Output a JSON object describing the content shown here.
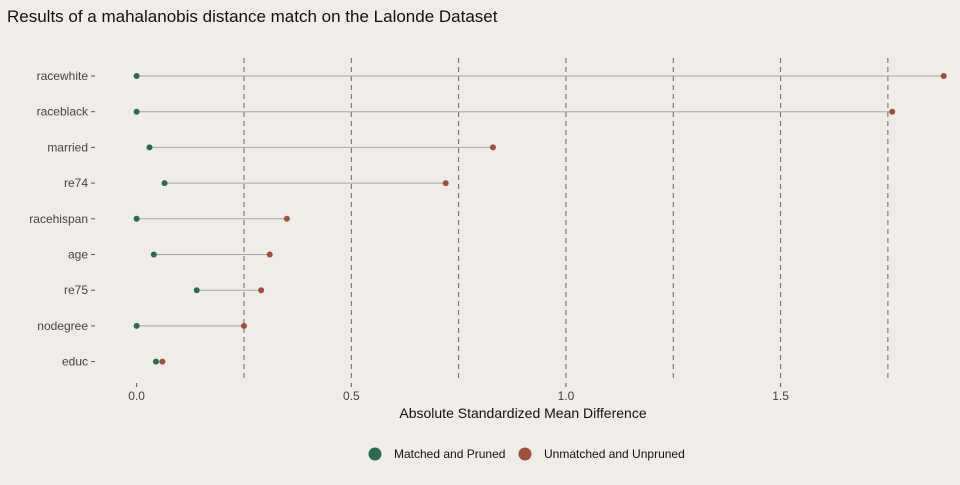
{
  "chart_data": {
    "type": "dot",
    "title": "Results of a mahalanobis distance match on the Lalonde Dataset",
    "xlabel": "Absolute Standardized Mean Difference",
    "ylabel": "",
    "xlim": [
      -0.09,
      1.89
    ],
    "x_ticks": [
      0.0,
      0.5,
      1.0,
      1.5
    ],
    "x_tick_labels": [
      "0.0",
      "0.5",
      "1.0",
      "1.5"
    ],
    "reference_lines": [
      0.25,
      0.5,
      0.75,
      1.0,
      1.25,
      1.5,
      1.75
    ],
    "reference_line_style": "dashed",
    "grid": false,
    "legend_position": "bottom",
    "categories": [
      "racewhite",
      "raceblack",
      "married",
      "re74",
      "racehispan",
      "age",
      "re75",
      "nodegree",
      "educ"
    ],
    "series": [
      {
        "name": "Matched and Pruned",
        "color": "#2d6b4f",
        "values": [
          0.0,
          0.0,
          0.03,
          0.065,
          0.0,
          0.04,
          0.14,
          0.0,
          0.045
        ]
      },
      {
        "name": "Unmatched and Unpruned",
        "color": "#a0503a",
        "values": [
          1.88,
          1.76,
          0.83,
          0.72,
          0.35,
          0.31,
          0.29,
          0.25,
          0.06
        ]
      }
    ],
    "connector_color": "#a8a39e"
  }
}
